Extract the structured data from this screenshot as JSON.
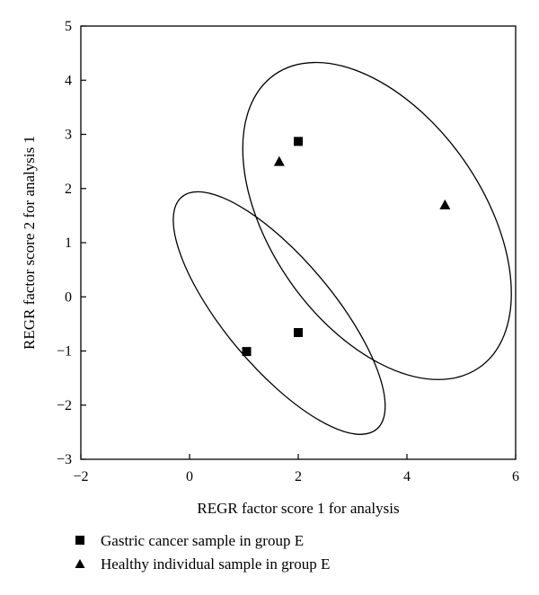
{
  "chart_data": {
    "type": "scatter",
    "xlabel": "REGR factor score 1 for analysis",
    "ylabel": "REGR factor score 2 for analysis 1",
    "xlim": [
      -2,
      6
    ],
    "ylim": [
      -3,
      5
    ],
    "xticks": [
      -2,
      0,
      2,
      4,
      6
    ],
    "yticks": [
      -3,
      -2,
      -1,
      0,
      1,
      2,
      3,
      4,
      5
    ],
    "tick_labels_x": [
      "−2",
      "0",
      "2",
      "4",
      "6"
    ],
    "tick_labels_y": [
      "−3",
      "−2",
      "−1",
      "0",
      "1",
      "2",
      "3",
      "4",
      "5"
    ],
    "grid": false,
    "legend_position": "bottom",
    "series": [
      {
        "name": "Gastric cancer sample in group E",
        "marker": "square",
        "color": "#000000",
        "points": [
          {
            "x": 2.0,
            "y": 2.87
          },
          {
            "x": 2.0,
            "y": -0.66
          },
          {
            "x": 1.05,
            "y": -1.01
          }
        ]
      },
      {
        "name": "Healthy individual sample in group E",
        "marker": "triangle",
        "color": "#000000",
        "points": [
          {
            "x": 1.65,
            "y": 2.5
          },
          {
            "x": 4.7,
            "y": 1.7
          }
        ]
      }
    ],
    "ellipses": [
      {
        "name": "Healthy individual sample in group E",
        "center": [
          3.45,
          1.4
        ],
        "semi_axes": [
          1.95,
          3.3
        ],
        "angle_deg": 35
      },
      {
        "name": "Gastric cancer sample in group E",
        "center": [
          1.65,
          -0.3
        ],
        "semi_axes": [
          1.0,
          2.8
        ],
        "angle_deg": 40
      }
    ]
  }
}
